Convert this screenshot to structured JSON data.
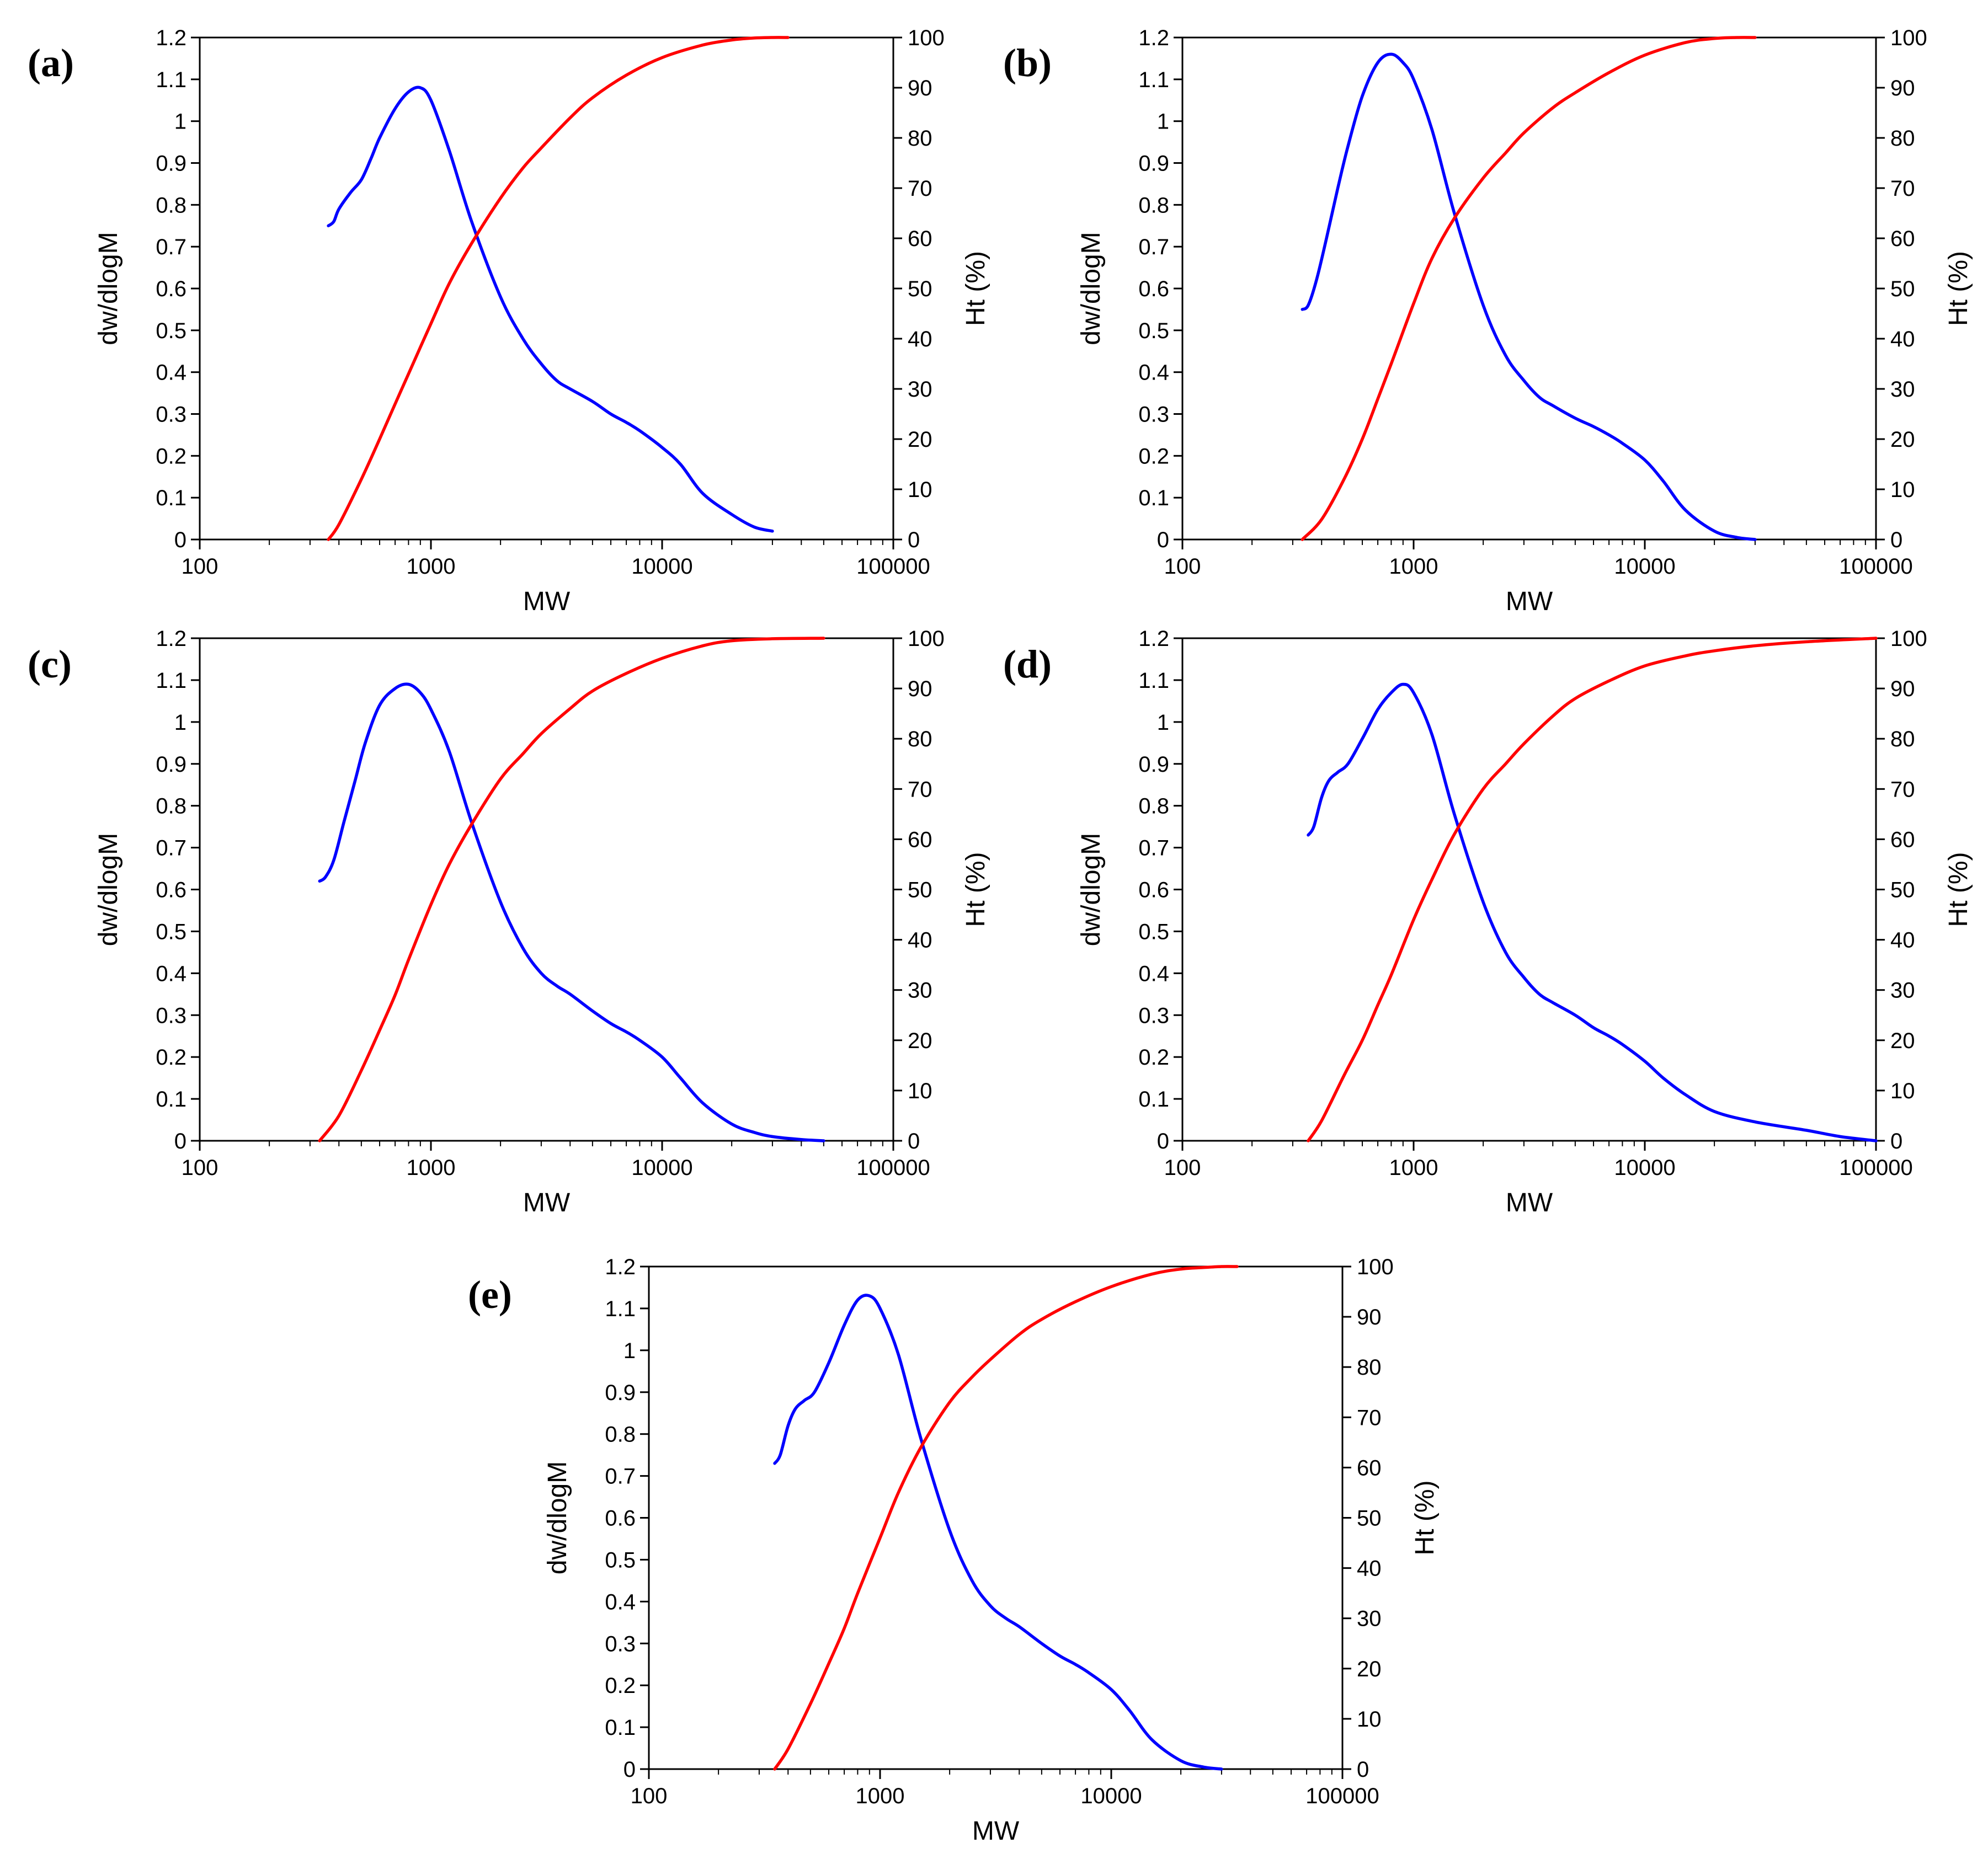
{
  "colors": {
    "distribution": "#0000ff",
    "cumulative": "#ff0000",
    "axis": "#000000"
  },
  "chart_data": [
    {
      "panel": "(a)",
      "type": "line",
      "xlabel": "MW",
      "ylabel": "dw/dlogM",
      "y2label": "Ht (%)",
      "xscale": "log",
      "xlim": [
        100,
        100000
      ],
      "ylim": [
        0,
        1.2
      ],
      "y2lim": [
        0,
        100
      ],
      "x_ticks": [
        "100",
        "1000",
        "10000",
        "100000"
      ],
      "y_ticks": [
        "0",
        "0.1",
        "0.2",
        "0.3",
        "0.4",
        "0.5",
        "0.6",
        "0.7",
        "0.8",
        "0.9",
        "1",
        "1.1",
        "1.2"
      ],
      "y2_ticks": [
        "0",
        "10",
        "20",
        "30",
        "40",
        "50",
        "60",
        "70",
        "80",
        "90",
        "100"
      ],
      "series": [
        {
          "name": "dw/dlogM",
          "axis": "left",
          "x": [
            360,
            380,
            400,
            450,
            500,
            550,
            600,
            700,
            800,
            900,
            1000,
            1200,
            1500,
            2000,
            2500,
            3000,
            3500,
            4000,
            5000,
            6000,
            7000,
            8000,
            10000,
            12000,
            15000,
            20000,
            25000,
            30000
          ],
          "y": [
            0.75,
            0.76,
            0.79,
            0.83,
            0.86,
            0.91,
            0.96,
            1.03,
            1.07,
            1.08,
            1.05,
            0.93,
            0.76,
            0.58,
            0.48,
            0.42,
            0.38,
            0.36,
            0.33,
            0.3,
            0.28,
            0.26,
            0.22,
            0.18,
            0.11,
            0.06,
            0.03,
            0.02
          ]
        },
        {
          "name": "Ht (%)",
          "axis": "right",
          "x": [
            360,
            400,
            500,
            600,
            700,
            800,
            1000,
            1200,
            1500,
            2000,
            2500,
            3000,
            4000,
            5000,
            7000,
            10000,
            15000,
            20000,
            25000,
            30000,
            35000
          ],
          "y": [
            0,
            3,
            12,
            20,
            27,
            33,
            43,
            51,
            59,
            68,
            74,
            78,
            84,
            88,
            92.5,
            96,
            98.5,
            99.5,
            99.9,
            100,
            100
          ]
        }
      ]
    },
    {
      "panel": "(b)",
      "type": "line",
      "xlabel": "MW",
      "ylabel": "dw/dlogM",
      "y2label": "Ht (%)",
      "xscale": "log",
      "xlim": [
        100,
        100000
      ],
      "ylim": [
        0,
        1.2
      ],
      "y2lim": [
        0,
        100
      ],
      "x_ticks": [
        "100",
        "1000",
        "10000",
        "100000"
      ],
      "y_ticks": [
        "0",
        "0.1",
        "0.2",
        "0.3",
        "0.4",
        "0.5",
        "0.6",
        "0.7",
        "0.8",
        "0.9",
        "1",
        "1.1",
        "1.2"
      ],
      "y2_ticks": [
        "0",
        "10",
        "20",
        "30",
        "40",
        "50",
        "60",
        "70",
        "80",
        "90",
        "100"
      ],
      "series": [
        {
          "name": "dw/dlogM",
          "axis": "left",
          "x": [
            330,
            350,
            380,
            420,
            470,
            520,
            600,
            700,
            800,
            900,
            1000,
            1200,
            1500,
            2000,
            2500,
            3000,
            3500,
            4000,
            5000,
            6000,
            7000,
            8000,
            10000,
            12000,
            15000,
            20000,
            25000,
            30000
          ],
          "y": [
            0.55,
            0.56,
            0.62,
            0.72,
            0.84,
            0.94,
            1.06,
            1.14,
            1.16,
            1.14,
            1.1,
            0.98,
            0.78,
            0.56,
            0.44,
            0.38,
            0.34,
            0.32,
            0.29,
            0.27,
            0.25,
            0.23,
            0.19,
            0.14,
            0.07,
            0.02,
            0.005,
            0
          ]
        },
        {
          "name": "Ht (%)",
          "axis": "right",
          "x": [
            330,
            400,
            500,
            600,
            700,
            800,
            1000,
            1200,
            1500,
            2000,
            2500,
            3000,
            4000,
            5000,
            7000,
            10000,
            15000,
            20000,
            25000,
            30000
          ],
          "y": [
            0,
            4,
            12,
            20,
            28,
            35,
            47,
            56,
            64,
            72,
            77,
            81,
            86,
            89,
            93,
            96.5,
            99,
            99.8,
            100,
            100
          ]
        }
      ]
    },
    {
      "panel": "(c)",
      "type": "line",
      "xlabel": "MW",
      "ylabel": "dw/dlogM",
      "y2label": "Ht (%)",
      "xscale": "log",
      "xlim": [
        100,
        100000
      ],
      "ylim": [
        0,
        1.2
      ],
      "y2lim": [
        0,
        100
      ],
      "x_ticks": [
        "100",
        "1000",
        "10000",
        "100000"
      ],
      "y_ticks": [
        "0",
        "0.1",
        "0.2",
        "0.3",
        "0.4",
        "0.5",
        "0.6",
        "0.7",
        "0.8",
        "0.9",
        "1",
        "1.1",
        "1.2"
      ],
      "y2_ticks": [
        "0",
        "10",
        "20",
        "30",
        "40",
        "50",
        "60",
        "70",
        "80",
        "90",
        "100"
      ],
      "series": [
        {
          "name": "dw/dlogM",
          "axis": "left",
          "x": [
            330,
            350,
            380,
            420,
            470,
            520,
            600,
            700,
            800,
            900,
            1000,
            1200,
            1500,
            2000,
            2500,
            3000,
            3500,
            4000,
            5000,
            6000,
            7000,
            8000,
            10000,
            12000,
            15000,
            20000,
            25000,
            30000,
            40000,
            50000
          ],
          "y": [
            0.62,
            0.63,
            0.67,
            0.76,
            0.86,
            0.95,
            1.04,
            1.08,
            1.09,
            1.07,
            1.03,
            0.93,
            0.76,
            0.57,
            0.46,
            0.4,
            0.37,
            0.35,
            0.31,
            0.28,
            0.26,
            0.24,
            0.2,
            0.15,
            0.09,
            0.04,
            0.02,
            0.01,
            0.003,
            0
          ]
        },
        {
          "name": "Ht (%)",
          "axis": "right",
          "x": [
            330,
            400,
            500,
            600,
            700,
            800,
            1000,
            1200,
            1500,
            2000,
            2500,
            3000,
            4000,
            5000,
            7000,
            10000,
            15000,
            20000,
            30000,
            50000
          ],
          "y": [
            0,
            5,
            14,
            22,
            29,
            36,
            47,
            55,
            63,
            72,
            77,
            81,
            86,
            89.5,
            93,
            96,
            98.5,
            99.5,
            99.9,
            100
          ]
        }
      ]
    },
    {
      "panel": "(d)",
      "type": "line",
      "xlabel": "MW",
      "ylabel": "dw/dlogM",
      "y2label": "Ht (%)",
      "xscale": "log",
      "xlim": [
        100,
        100000
      ],
      "ylim": [
        0,
        1.2
      ],
      "y2lim": [
        0,
        100
      ],
      "x_ticks": [
        "100",
        "1000",
        "10000",
        "100000"
      ],
      "y_ticks": [
        "0",
        "0.1",
        "0.2",
        "0.3",
        "0.4",
        "0.5",
        "0.6",
        "0.7",
        "0.8",
        "0.9",
        "1",
        "1.1",
        "1.2"
      ],
      "y2_ticks": [
        "0",
        "10",
        "20",
        "30",
        "40",
        "50",
        "60",
        "70",
        "80",
        "90",
        "100"
      ],
      "series": [
        {
          "name": "dw/dlogM",
          "axis": "left",
          "x": [
            350,
            370,
            400,
            430,
            470,
            520,
            600,
            700,
            800,
            900,
            1000,
            1200,
            1500,
            2000,
            2500,
            3000,
            3500,
            4000,
            5000,
            6000,
            7000,
            8000,
            10000,
            12000,
            15000,
            20000,
            30000,
            50000,
            70000,
            100000
          ],
          "y": [
            0.73,
            0.75,
            0.82,
            0.86,
            0.88,
            0.9,
            0.96,
            1.03,
            1.07,
            1.09,
            1.07,
            0.97,
            0.78,
            0.57,
            0.45,
            0.39,
            0.35,
            0.33,
            0.3,
            0.27,
            0.25,
            0.23,
            0.19,
            0.15,
            0.11,
            0.07,
            0.045,
            0.025,
            0.01,
            0
          ]
        },
        {
          "name": "Ht (%)",
          "axis": "right",
          "x": [
            350,
            400,
            500,
            600,
            700,
            800,
            1000,
            1200,
            1500,
            2000,
            2500,
            3000,
            4000,
            5000,
            7000,
            10000,
            15000,
            20000,
            30000,
            50000,
            100000
          ],
          "y": [
            0,
            4,
            13,
            20,
            27,
            33,
            44,
            52,
            61,
            70,
            75,
            79,
            84.5,
            88,
            91.5,
            94.5,
            96.5,
            97.5,
            98.5,
            99.3,
            100
          ]
        }
      ]
    },
    {
      "panel": "(e)",
      "type": "line",
      "xlabel": "MW",
      "ylabel": "dw/dlogM",
      "y2label": "Ht (%)",
      "xscale": "log",
      "xlim": [
        100,
        100000
      ],
      "ylim": [
        0,
        1.2
      ],
      "y2lim": [
        0,
        100
      ],
      "x_ticks": [
        "100",
        "1000",
        "10000",
        "100000"
      ],
      "y_ticks": [
        "0",
        "0.1",
        "0.2",
        "0.3",
        "0.4",
        "0.5",
        "0.6",
        "0.7",
        "0.8",
        "0.9",
        "1",
        "1.1",
        "1.2"
      ],
      "y2_ticks": [
        "0",
        "10",
        "20",
        "30",
        "40",
        "50",
        "60",
        "70",
        "80",
        "90",
        "100"
      ],
      "series": [
        {
          "name": "dw/dlogM",
          "axis": "left",
          "x": [
            350,
            370,
            400,
            430,
            470,
            520,
            600,
            700,
            800,
            900,
            1000,
            1200,
            1500,
            2000,
            2500,
            3000,
            3500,
            4000,
            5000,
            6000,
            7000,
            8000,
            10000,
            12000,
            15000,
            20000,
            25000,
            30000
          ],
          "y": [
            0.73,
            0.75,
            0.82,
            0.86,
            0.88,
            0.9,
            0.97,
            1.06,
            1.12,
            1.13,
            1.1,
            0.99,
            0.79,
            0.57,
            0.45,
            0.39,
            0.36,
            0.34,
            0.3,
            0.27,
            0.25,
            0.23,
            0.19,
            0.14,
            0.07,
            0.02,
            0.005,
            0
          ]
        },
        {
          "name": "Ht (%)",
          "axis": "right",
          "x": [
            350,
            400,
            500,
            600,
            700,
            800,
            1000,
            1200,
            1500,
            2000,
            2500,
            3000,
            4000,
            5000,
            7000,
            10000,
            15000,
            20000,
            25000,
            30000,
            35000
          ],
          "y": [
            0,
            4,
            13,
            21,
            28,
            35,
            46,
            55,
            64,
            73,
            78,
            81.5,
            86.5,
            89.5,
            93,
            96,
            98.5,
            99.5,
            99.8,
            100,
            100
          ]
        }
      ]
    }
  ]
}
